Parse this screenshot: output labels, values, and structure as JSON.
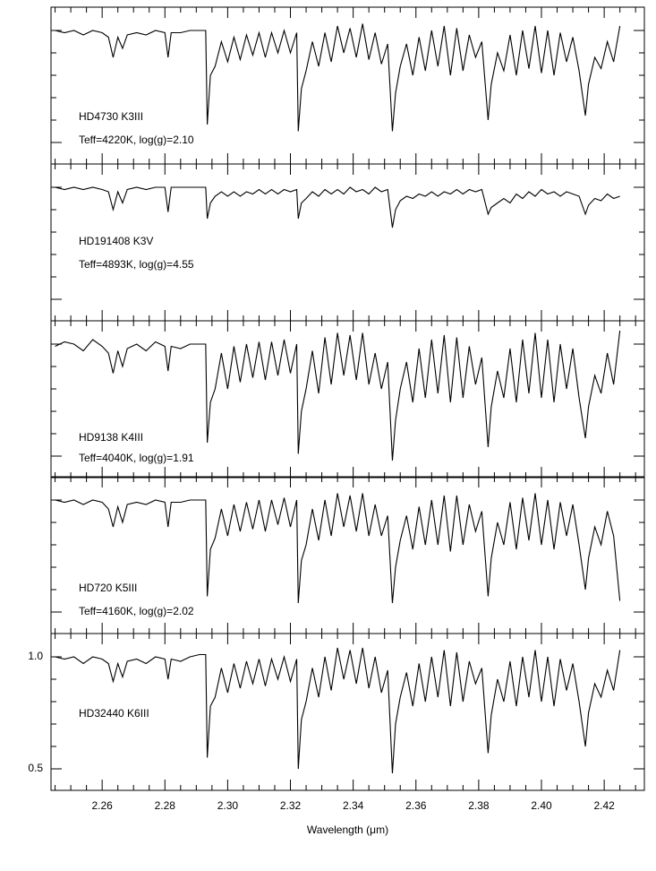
{
  "chart_data": [
    {
      "type": "line",
      "name": "HD4730  K3III",
      "subtitle": "Teff=4220K, log(g)=2.10",
      "color": "#000000",
      "tick_labels": false,
      "x": [
        2.245,
        2.248,
        2.251,
        2.254,
        2.257,
        2.26,
        2.262,
        2.2635,
        2.265,
        2.2665,
        2.268,
        2.271,
        2.274,
        2.277,
        2.28,
        2.281,
        2.282,
        2.285,
        2.288,
        2.291,
        2.293,
        2.2935,
        2.2945,
        2.296,
        2.298,
        2.3,
        2.302,
        2.304,
        2.306,
        2.308,
        2.31,
        2.312,
        2.314,
        2.316,
        2.318,
        2.32,
        2.322,
        2.3225,
        2.3235,
        2.325,
        2.327,
        2.329,
        2.331,
        2.333,
        2.335,
        2.337,
        2.339,
        2.341,
        2.343,
        2.345,
        2.347,
        2.349,
        2.351,
        2.3525,
        2.3535,
        2.355,
        2.357,
        2.359,
        2.361,
        2.363,
        2.365,
        2.367,
        2.369,
        2.371,
        2.373,
        2.375,
        2.377,
        2.379,
        2.381,
        2.383,
        2.384,
        2.386,
        2.388,
        2.39,
        2.392,
        2.394,
        2.396,
        2.398,
        2.4,
        2.402,
        2.404,
        2.406,
        2.408,
        2.41,
        2.412,
        2.414,
        2.415,
        2.417,
        2.419,
        2.421,
        2.423,
        2.425
      ],
      "values": [
        1.0,
        0.99,
        1.0,
        0.98,
        1.0,
        0.99,
        0.97,
        0.88,
        0.97,
        0.92,
        0.98,
        0.99,
        0.98,
        1.0,
        0.99,
        0.88,
        0.99,
        0.99,
        1.0,
        1.0,
        1.0,
        0.58,
        0.8,
        0.84,
        0.95,
        0.86,
        0.97,
        0.87,
        0.98,
        0.89,
        0.99,
        0.88,
        0.99,
        0.9,
        1.0,
        0.9,
        0.99,
        0.55,
        0.74,
        0.82,
        0.95,
        0.84,
        0.99,
        0.86,
        1.02,
        0.9,
        1.01,
        0.88,
        1.03,
        0.87,
        0.99,
        0.85,
        0.94,
        0.55,
        0.72,
        0.84,
        0.94,
        0.8,
        0.97,
        0.82,
        1.0,
        0.84,
        1.02,
        0.8,
        1.01,
        0.82,
        0.98,
        0.88,
        0.95,
        0.6,
        0.76,
        0.9,
        0.82,
        0.98,
        0.8,
        1.0,
        0.83,
        1.02,
        0.81,
        1.0,
        0.8,
        0.99,
        0.86,
        0.97,
        0.82,
        0.62,
        0.76,
        0.88,
        0.83,
        0.95,
        0.86,
        1.02
      ],
      "xlim": [
        2.2437,
        2.4328
      ],
      "xticks": [
        2.26,
        2.28,
        2.3,
        2.32,
        2.34,
        2.36,
        2.38,
        2.4,
        2.42
      ],
      "xticks_minor": [
        2.245,
        2.25,
        2.255,
        2.265,
        2.27,
        2.275,
        2.285,
        2.29,
        2.295,
        2.305,
        2.31,
        2.315,
        2.325,
        2.33,
        2.335,
        2.345,
        2.35,
        2.355,
        2.365,
        2.37,
        2.375,
        2.385,
        2.39,
        2.395,
        2.405,
        2.41,
        2.415,
        2.425,
        2.43
      ],
      "ylim": [
        0.404,
        1.104
      ],
      "yticks": [
        0.5,
        1
      ],
      "yticks_minor": [
        0.6,
        0.7,
        0.8,
        0.9
      ]
    },
    {
      "type": "line",
      "name": "HD191408  K3V",
      "subtitle": "Teff=4893K, log(g)=4.55",
      "color": "#000000",
      "tick_labels": false,
      "x": [
        2.245,
        2.248,
        2.251,
        2.254,
        2.257,
        2.26,
        2.262,
        2.2635,
        2.265,
        2.2665,
        2.268,
        2.271,
        2.274,
        2.277,
        2.28,
        2.281,
        2.282,
        2.285,
        2.288,
        2.291,
        2.293,
        2.2935,
        2.2945,
        2.296,
        2.298,
        2.3,
        2.302,
        2.304,
        2.306,
        2.308,
        2.31,
        2.312,
        2.314,
        2.316,
        2.318,
        2.32,
        2.322,
        2.3225,
        2.3235,
        2.325,
        2.327,
        2.329,
        2.331,
        2.333,
        2.335,
        2.337,
        2.339,
        2.341,
        2.343,
        2.345,
        2.347,
        2.349,
        2.351,
        2.3525,
        2.3535,
        2.355,
        2.357,
        2.359,
        2.361,
        2.363,
        2.365,
        2.367,
        2.369,
        2.371,
        2.373,
        2.375,
        2.377,
        2.379,
        2.381,
        2.383,
        2.384,
        2.386,
        2.388,
        2.39,
        2.392,
        2.394,
        2.396,
        2.398,
        2.4,
        2.402,
        2.404,
        2.406,
        2.408,
        2.41,
        2.412,
        2.414,
        2.415,
        2.417,
        2.419,
        2.421,
        2.423,
        2.425
      ],
      "values": [
        1.0,
        0.99,
        1.0,
        0.99,
        1.0,
        0.99,
        0.98,
        0.9,
        0.98,
        0.93,
        0.99,
        1.0,
        0.99,
        1.0,
        1.0,
        0.89,
        1.0,
        1.0,
        1.0,
        1.0,
        1.0,
        0.86,
        0.93,
        0.96,
        0.98,
        0.96,
        0.98,
        0.96,
        0.98,
        0.97,
        0.99,
        0.97,
        0.99,
        0.97,
        0.99,
        0.98,
        0.99,
        0.86,
        0.93,
        0.95,
        0.98,
        0.96,
        0.99,
        0.97,
        0.99,
        0.97,
        1.0,
        0.98,
        0.99,
        0.97,
        1.0,
        0.98,
        0.99,
        0.82,
        0.9,
        0.94,
        0.96,
        0.95,
        0.97,
        0.96,
        0.98,
        0.96,
        0.98,
        0.97,
        0.99,
        0.97,
        0.99,
        0.98,
        0.99,
        0.88,
        0.91,
        0.93,
        0.95,
        0.93,
        0.97,
        0.95,
        0.98,
        0.96,
        0.99,
        0.97,
        0.98,
        0.96,
        0.98,
        0.97,
        0.96,
        0.88,
        0.92,
        0.95,
        0.94,
        0.97,
        0.95,
        0.96
      ],
      "xlim": [
        2.2437,
        2.4328
      ],
      "xticks": [
        2.26,
        2.28,
        2.3,
        2.32,
        2.34,
        2.36,
        2.38,
        2.4,
        2.42
      ],
      "xticks_minor": [
        2.245,
        2.25,
        2.255,
        2.265,
        2.27,
        2.275,
        2.285,
        2.29,
        2.295,
        2.305,
        2.31,
        2.315,
        2.325,
        2.33,
        2.335,
        2.345,
        2.35,
        2.355,
        2.365,
        2.37,
        2.375,
        2.385,
        2.39,
        2.395,
        2.405,
        2.41,
        2.415,
        2.425,
        2.43
      ],
      "ylim": [
        0.404,
        1.104
      ],
      "yticks": [
        0.5,
        1
      ],
      "yticks_minor": [
        0.6,
        0.7,
        0.8,
        0.9
      ]
    },
    {
      "type": "line",
      "name": "HD9138  K4III",
      "subtitle": "Teff=4040K, log(g)=1.91",
      "color": "#000000",
      "tick_labels": false,
      "x": [
        2.245,
        2.248,
        2.251,
        2.254,
        2.257,
        2.26,
        2.262,
        2.2635,
        2.265,
        2.2665,
        2.268,
        2.271,
        2.274,
        2.277,
        2.28,
        2.281,
        2.282,
        2.285,
        2.288,
        2.291,
        2.293,
        2.2935,
        2.2945,
        2.296,
        2.298,
        2.3,
        2.302,
        2.304,
        2.306,
        2.308,
        2.31,
        2.312,
        2.314,
        2.316,
        2.318,
        2.32,
        2.322,
        2.3225,
        2.3235,
        2.325,
        2.327,
        2.329,
        2.331,
        2.333,
        2.335,
        2.337,
        2.339,
        2.341,
        2.343,
        2.345,
        2.347,
        2.349,
        2.351,
        2.3525,
        2.3535,
        2.355,
        2.357,
        2.359,
        2.361,
        2.363,
        2.365,
        2.367,
        2.369,
        2.371,
        2.373,
        2.375,
        2.377,
        2.379,
        2.381,
        2.383,
        2.384,
        2.386,
        2.388,
        2.39,
        2.392,
        2.394,
        2.396,
        2.398,
        2.4,
        2.402,
        2.404,
        2.406,
        2.408,
        2.41,
        2.412,
        2.414,
        2.415,
        2.417,
        2.419,
        2.421,
        2.423,
        2.425
      ],
      "values": [
        0.99,
        1.01,
        1.0,
        0.97,
        1.02,
        0.99,
        0.96,
        0.87,
        0.97,
        0.9,
        0.98,
        1.0,
        0.97,
        1.01,
        0.99,
        0.88,
        0.99,
        0.98,
        1.0,
        1.0,
        1.0,
        0.56,
        0.74,
        0.8,
        0.96,
        0.8,
        0.99,
        0.83,
        1.0,
        0.85,
        1.01,
        0.84,
        1.01,
        0.86,
        1.02,
        0.87,
        1.0,
        0.51,
        0.7,
        0.8,
        0.97,
        0.78,
        1.03,
        0.82,
        1.05,
        0.86,
        1.04,
        0.84,
        1.05,
        0.82,
        0.96,
        0.8,
        0.92,
        0.48,
        0.66,
        0.8,
        0.92,
        0.74,
        0.98,
        0.76,
        1.02,
        0.78,
        1.04,
        0.74,
        1.03,
        0.76,
        0.99,
        0.82,
        0.94,
        0.54,
        0.72,
        0.88,
        0.76,
        0.98,
        0.74,
        1.02,
        0.78,
        1.05,
        0.76,
        1.02,
        0.74,
        1.0,
        0.8,
        0.98,
        0.76,
        0.58,
        0.72,
        0.86,
        0.78,
        0.96,
        0.82,
        1.06
      ],
      "xlim": [
        2.2437,
        2.4328
      ],
      "xticks": [
        2.26,
        2.28,
        2.3,
        2.32,
        2.34,
        2.36,
        2.38,
        2.4,
        2.42
      ],
      "xticks_minor": [
        2.245,
        2.25,
        2.255,
        2.265,
        2.27,
        2.275,
        2.285,
        2.29,
        2.295,
        2.305,
        2.31,
        2.315,
        2.325,
        2.33,
        2.335,
        2.345,
        2.35,
        2.355,
        2.365,
        2.37,
        2.375,
        2.385,
        2.39,
        2.395,
        2.405,
        2.41,
        2.415,
        2.425,
        2.43
      ],
      "ylim": [
        0.404,
        1.104
      ],
      "yticks": [
        0.5,
        1
      ],
      "yticks_minor": [
        0.6,
        0.7,
        0.8,
        0.9
      ]
    },
    {
      "type": "line",
      "name": "HD720  K5III",
      "subtitle": "Teff=4160K, log(g)=2.02",
      "color": "#000000",
      "tick_labels": false,
      "x": [
        2.245,
        2.248,
        2.251,
        2.254,
        2.257,
        2.26,
        2.262,
        2.2635,
        2.265,
        2.2665,
        2.268,
        2.271,
        2.274,
        2.277,
        2.28,
        2.281,
        2.282,
        2.285,
        2.288,
        2.291,
        2.293,
        2.2935,
        2.2945,
        2.296,
        2.298,
        2.3,
        2.302,
        2.304,
        2.306,
        2.308,
        2.31,
        2.312,
        2.314,
        2.316,
        2.318,
        2.32,
        2.322,
        2.3225,
        2.3235,
        2.325,
        2.327,
        2.329,
        2.331,
        2.333,
        2.335,
        2.337,
        2.339,
        2.341,
        2.343,
        2.345,
        2.347,
        2.349,
        2.351,
        2.3525,
        2.3535,
        2.355,
        2.357,
        2.359,
        2.361,
        2.363,
        2.365,
        2.367,
        2.369,
        2.371,
        2.373,
        2.375,
        2.377,
        2.379,
        2.381,
        2.383,
        2.384,
        2.386,
        2.388,
        2.39,
        2.392,
        2.394,
        2.396,
        2.398,
        2.4,
        2.402,
        2.404,
        2.406,
        2.408,
        2.41,
        2.412,
        2.414,
        2.415,
        2.417,
        2.419,
        2.421,
        2.423,
        2.425
      ],
      "values": [
        1.0,
        0.99,
        1.0,
        0.98,
        1.0,
        0.99,
        0.96,
        0.88,
        0.97,
        0.9,
        0.98,
        0.99,
        0.98,
        1.0,
        0.99,
        0.88,
        0.99,
        0.99,
        1.0,
        1.0,
        1.0,
        0.57,
        0.78,
        0.83,
        0.96,
        0.84,
        0.98,
        0.86,
        0.99,
        0.87,
        1.0,
        0.86,
        1.0,
        0.89,
        1.01,
        0.88,
        1.0,
        0.54,
        0.73,
        0.8,
        0.96,
        0.82,
        1.0,
        0.84,
        1.03,
        0.88,
        1.02,
        0.86,
        1.03,
        0.84,
        0.98,
        0.84,
        0.93,
        0.54,
        0.7,
        0.82,
        0.93,
        0.78,
        0.97,
        0.8,
        1.0,
        0.8,
        1.02,
        0.77,
        1.02,
        0.8,
        0.98,
        0.86,
        0.95,
        0.57,
        0.74,
        0.9,
        0.8,
        0.99,
        0.78,
        1.01,
        0.82,
        1.03,
        0.8,
        1.0,
        0.78,
        0.99,
        0.84,
        0.98,
        0.8,
        0.6,
        0.74,
        0.88,
        0.8,
        0.95,
        0.84,
        0.55
      ],
      "xlim": [
        2.2437,
        2.4328
      ],
      "xticks": [
        2.26,
        2.28,
        2.3,
        2.32,
        2.34,
        2.36,
        2.38,
        2.4,
        2.42
      ],
      "xticks_minor": [
        2.245,
        2.25,
        2.255,
        2.265,
        2.27,
        2.275,
        2.285,
        2.29,
        2.295,
        2.305,
        2.31,
        2.315,
        2.325,
        2.33,
        2.335,
        2.345,
        2.35,
        2.355,
        2.365,
        2.37,
        2.375,
        2.385,
        2.39,
        2.395,
        2.405,
        2.41,
        2.415,
        2.425,
        2.43
      ],
      "ylim": [
        0.404,
        1.104
      ],
      "yticks": [
        0.5,
        1
      ],
      "yticks_minor": [
        0.6,
        0.7,
        0.8,
        0.9
      ]
    },
    {
      "type": "line",
      "name": "HD32440  K6III",
      "color": "#000000",
      "tick_labels": true,
      "xlabel": "Wavelength (μm)",
      "x": [
        2.245,
        2.248,
        2.251,
        2.254,
        2.257,
        2.26,
        2.262,
        2.2635,
        2.265,
        2.2665,
        2.268,
        2.271,
        2.274,
        2.277,
        2.28,
        2.281,
        2.282,
        2.285,
        2.288,
        2.291,
        2.293,
        2.2935,
        2.2945,
        2.296,
        2.298,
        2.3,
        2.302,
        2.304,
        2.306,
        2.308,
        2.31,
        2.312,
        2.314,
        2.316,
        2.318,
        2.32,
        2.322,
        2.3225,
        2.3235,
        2.325,
        2.327,
        2.329,
        2.331,
        2.333,
        2.335,
        2.337,
        2.339,
        2.341,
        2.343,
        2.345,
        2.347,
        2.349,
        2.351,
        2.3525,
        2.3535,
        2.355,
        2.357,
        2.359,
        2.361,
        2.363,
        2.365,
        2.367,
        2.369,
        2.371,
        2.373,
        2.375,
        2.377,
        2.379,
        2.381,
        2.383,
        2.384,
        2.386,
        2.388,
        2.39,
        2.392,
        2.394,
        2.396,
        2.398,
        2.4,
        2.402,
        2.404,
        2.406,
        2.408,
        2.41,
        2.412,
        2.414,
        2.415,
        2.417,
        2.419,
        2.421,
        2.423,
        2.425
      ],
      "values": [
        1.0,
        0.99,
        1.0,
        0.97,
        1.0,
        0.99,
        0.97,
        0.89,
        0.97,
        0.91,
        0.98,
        0.99,
        0.97,
        1.0,
        0.99,
        0.9,
        0.99,
        0.98,
        1.0,
        1.01,
        1.01,
        0.55,
        0.78,
        0.82,
        0.95,
        0.84,
        0.97,
        0.86,
        0.98,
        0.88,
        0.99,
        0.87,
        0.99,
        0.9,
        1.0,
        0.89,
        0.99,
        0.5,
        0.72,
        0.8,
        0.95,
        0.82,
        1.0,
        0.85,
        1.04,
        0.9,
        1.03,
        0.88,
        1.04,
        0.86,
        1.0,
        0.84,
        0.94,
        0.48,
        0.7,
        0.82,
        0.93,
        0.78,
        0.97,
        0.8,
        1.0,
        0.82,
        1.03,
        0.78,
        1.02,
        0.8,
        0.98,
        0.88,
        0.95,
        0.57,
        0.74,
        0.9,
        0.8,
        0.98,
        0.78,
        1.0,
        0.82,
        1.03,
        0.8,
        1.0,
        0.78,
        0.99,
        0.85,
        0.97,
        0.8,
        0.6,
        0.75,
        0.88,
        0.82,
        0.94,
        0.85,
        1.03
      ],
      "xlim": [
        2.2437,
        2.4328
      ],
      "xticks": [
        2.26,
        2.28,
        {
          "value": 2.3,
          "label": "2.30"
        },
        2.32,
        2.34,
        2.36,
        2.38,
        {
          "value": 2.4,
          "label": "2.40"
        },
        2.42
      ],
      "xticks_minor": [
        2.245,
        2.25,
        2.255,
        2.265,
        2.27,
        2.275,
        2.285,
        2.29,
        2.295,
        2.305,
        2.31,
        2.315,
        2.325,
        2.33,
        2.335,
        2.345,
        2.35,
        2.355,
        2.365,
        2.37,
        2.375,
        2.385,
        2.39,
        2.395,
        2.405,
        2.41,
        2.415,
        2.425,
        2.43
      ],
      "ylim": [
        0.404,
        1.104
      ],
      "yticks": [
        0.5,
        {
          "value": 1,
          "label": "1.0"
        }
      ],
      "yticks_minor": [
        0.6,
        0.7,
        0.8,
        0.9
      ]
    }
  ]
}
